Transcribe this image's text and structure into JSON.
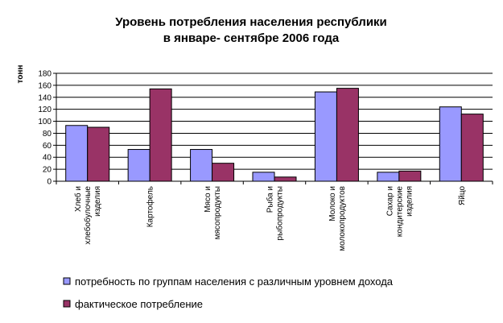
{
  "chart_data": {
    "type": "bar",
    "title": [
      "Уровень  потребления населения республики",
      "в январе- сентябре 2006 года"
    ],
    "ylabel": "тонн",
    "ylim": [
      0,
      180
    ],
    "yticks": [
      0,
      20,
      40,
      60,
      80,
      100,
      120,
      140,
      160,
      180
    ],
    "grid": true,
    "categories": [
      [
        "Хлеб и",
        "хлебобулочные",
        "изделия"
      ],
      [
        "Картофель"
      ],
      [
        "Мясо и",
        "мясопродукты"
      ],
      [
        "Рыба и",
        "рыбопродукты"
      ],
      [
        "Молоко и",
        "молокопродуктов"
      ],
      [
        "Сахар и",
        "кондитерские",
        "изделия"
      ],
      [
        "Яйцо"
      ]
    ],
    "series": [
      {
        "name": "потребность по группам населения с различным уровнем дохода",
        "color": "#9999ff",
        "values": [
          93,
          53,
          53,
          15,
          149,
          15,
          124
        ]
      },
      {
        "name": "фактическое потребление",
        "color": "#993366",
        "values": [
          90,
          154,
          30,
          7,
          155,
          17,
          112
        ]
      }
    ],
    "legend": "bottom"
  }
}
